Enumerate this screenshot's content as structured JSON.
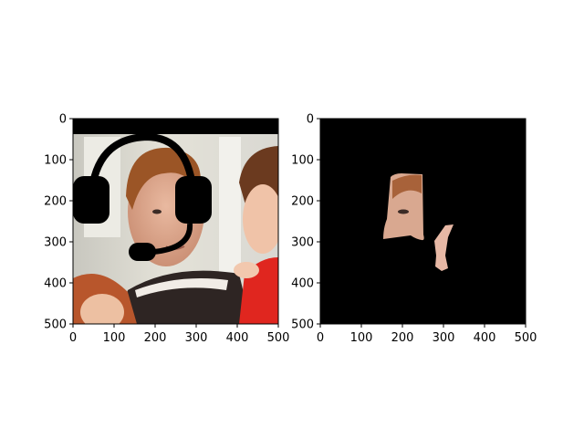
{
  "chart_data": [
    {
      "type": "image",
      "title": "",
      "xlabel": "",
      "ylabel": "",
      "xlim": [
        0,
        500
      ],
      "ylim": [
        500,
        0
      ],
      "x_ticks": [
        0,
        100,
        200,
        300,
        400,
        500
      ],
      "y_ticks": [
        0,
        100,
        200,
        300,
        400,
        500
      ],
      "x_tick_labels": [
        "0",
        "100",
        "200",
        "300",
        "400",
        "500"
      ],
      "y_tick_labels": [
        "0",
        "100",
        "200",
        "300",
        "400",
        "500"
      ],
      "content": "photo of a man wearing a black headset overlay, child on the right, red-haired person at bottom-left",
      "overlay": "headset-icon",
      "grid": false
    },
    {
      "type": "image",
      "title": "",
      "xlabel": "",
      "ylabel": "",
      "xlim": [
        0,
        500
      ],
      "ylim": [
        500,
        0
      ],
      "x_ticks": [
        0,
        100,
        200,
        300,
        400,
        500
      ],
      "y_ticks": [
        0,
        100,
        200,
        300,
        400,
        500
      ],
      "x_tick_labels": [
        "0",
        "100",
        "200",
        "300",
        "400",
        "500"
      ],
      "y_tick_labels": [
        "0",
        "100",
        "200",
        "300",
        "400",
        "500"
      ],
      "content": "segmentation mask on black background showing a fragment of the man's face and a skin patch",
      "background": "#000000",
      "grid": false
    }
  ]
}
